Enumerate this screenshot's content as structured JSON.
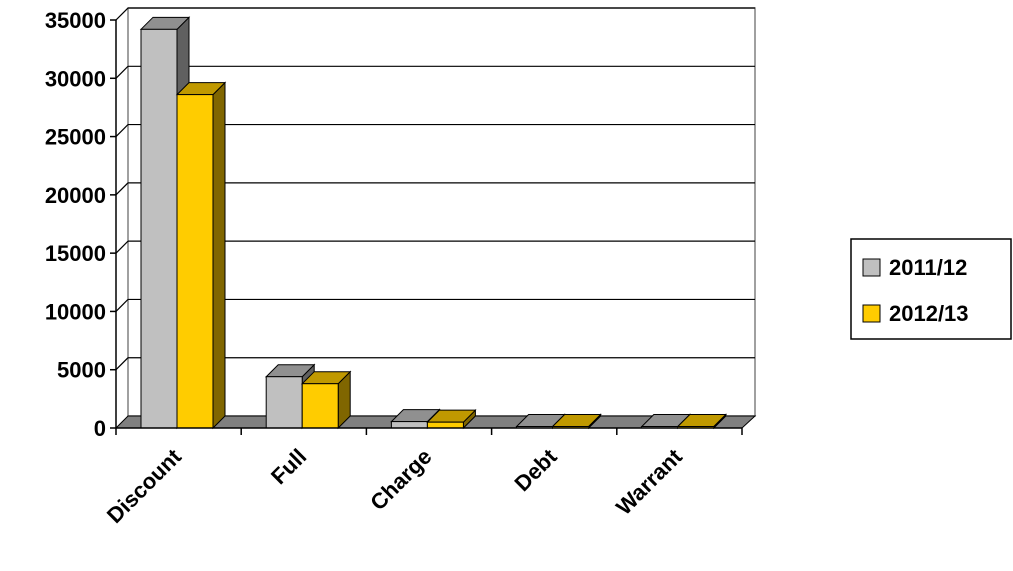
{
  "chart_data": {
    "type": "bar",
    "categories": [
      "Discount",
      "Full",
      "Charge",
      "Debt",
      "Warrant"
    ],
    "series": [
      {
        "name": "2011/12",
        "values": [
          34200,
          4400,
          550,
          60,
          50
        ]
      },
      {
        "name": "2012/13",
        "values": [
          28600,
          3800,
          500,
          60,
          50
        ]
      }
    ],
    "ylim": [
      0,
      35000
    ],
    "y_ticks": [
      "0",
      "5000",
      "10000",
      "15000",
      "20000",
      "25000",
      "30000",
      "35000"
    ],
    "grid": true,
    "legend": "right",
    "three_d": true,
    "colors": {
      "series_front": [
        "#c0c0c0",
        "#ffcc00"
      ],
      "series_side": [
        "#606060",
        "#806600"
      ],
      "series_top": [
        "#909090",
        "#c09900"
      ],
      "floor": "#808080",
      "gridline": "#000000",
      "wall_border": "#808080"
    }
  }
}
